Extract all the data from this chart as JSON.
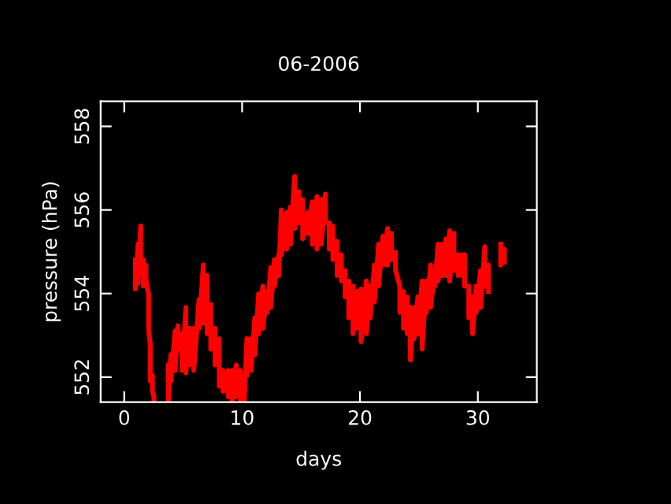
{
  "chart_data": {
    "type": "line",
    "title": "06-2006",
    "xlabel": "days",
    "ylabel": "pressure (hPa)",
    "xlim": [
      -2,
      35
    ],
    "xticks": [
      0,
      10,
      20,
      30
    ],
    "ylim": [
      551.4,
      558.6
    ],
    "yticks": [
      552,
      554,
      556,
      558
    ],
    "grid": false,
    "legend": false,
    "marker": "none",
    "line_style": "solid",
    "series": [
      {
        "color": "#ff0000",
        "x": [
          0.95,
          0.95,
          1.17,
          1.17,
          1.4,
          1.4,
          1.62,
          1.62,
          1.85,
          1.85,
          2.07,
          2.07,
          2.21,
          2.21,
          2.39,
          2.39,
          2.52,
          2.52,
          3.1,
          3.74,
          3.74,
          3.96,
          3.96,
          4.32,
          4.32,
          4.55,
          4.55,
          4.91,
          4.91,
          5.23,
          5.23,
          5.54,
          5.54,
          5.9,
          5.9,
          6.35,
          6.35,
          6.71,
          6.71,
          7.03,
          7.03,
          7.34,
          7.34,
          7.7,
          7.7,
          8.06,
          8.06,
          8.38,
          8.38,
          8.83,
          8.83,
          9.14,
          9.14,
          9.5,
          9.5,
          9.86,
          9.86,
          10.18,
          10.18,
          10.41,
          10.41,
          10.77,
          10.77,
          11.08,
          11.08,
          11.4,
          11.4,
          11.76,
          11.76,
          12.12,
          12.12,
          12.43,
          12.43,
          12.75,
          12.75,
          13.11,
          13.11,
          13.33,
          13.33,
          13.78,
          13.78,
          14.1,
          14.1,
          14.46,
          14.46,
          14.82,
          14.82,
          15.14,
          15.14,
          15.59,
          15.59,
          15.95,
          15.95,
          16.35,
          16.35,
          16.71,
          16.71,
          17.07,
          17.07,
          17.39,
          17.39,
          17.7,
          17.7,
          18.06,
          18.06,
          18.42,
          18.42,
          18.74,
          18.74,
          19.05,
          19.05,
          19.41,
          19.41,
          19.77,
          19.77,
          20.09,
          20.09,
          20.54,
          20.54,
          20.86,
          20.86,
          21.22,
          21.22,
          21.58,
          21.58,
          21.94,
          21.94,
          22.34,
          22.34,
          22.66,
          22.66,
          23.02,
          23.02,
          23.38,
          23.38,
          23.69,
          23.69,
          24.01,
          24.01,
          24.28,
          24.28,
          24.59,
          24.59,
          24.91,
          24.91,
          25.27,
          25.27,
          25.63,
          25.63,
          25.99,
          25.99,
          26.35,
          26.35,
          26.62,
          26.62,
          26.98,
          26.98,
          27.3,
          27.3,
          27.61,
          27.61,
          27.97,
          27.97,
          28.33,
          28.33,
          28.65,
          28.65,
          28.87,
          28.87,
          29.23,
          29.23,
          29.55,
          29.55,
          29.86,
          29.86,
          30.23,
          30.23,
          30.59,
          30.59,
          30.9,
          30.9,
          31.4,
          31.94,
          31.94,
          32.25,
          32.25
        ],
        "values": [
          554.81,
          554.11,
          555.18,
          554.24,
          555.62,
          554.55,
          554.81,
          554.18,
          554.68,
          554.3,
          553.99,
          553.11,
          552.79,
          551.91,
          552.04,
          551.66,
          551.53,
          551.41,
          null,
          552.29,
          551.41,
          552.54,
          551.91,
          553.11,
          552.16,
          553.23,
          552.67,
          553.04,
          552.16,
          553.67,
          552.1,
          553.17,
          552.29,
          553.17,
          552.16,
          553.86,
          553.17,
          554.68,
          553.29,
          554.43,
          553.04,
          553.74,
          552.67,
          553.17,
          552.29,
          552.92,
          551.78,
          552.16,
          551.66,
          552.16,
          551.53,
          552.16,
          551.41,
          552.29,
          551.53,
          552.16,
          551.41,
          552.04,
          551.41,
          552.92,
          552.04,
          552.92,
          552.16,
          553.42,
          552.54,
          553.99,
          553.04,
          554.18,
          553.17,
          554.05,
          553.55,
          554.62,
          553.67,
          554.81,
          554.18,
          554.93,
          554.43,
          556.0,
          554.93,
          555.94,
          555.06,
          556.07,
          555.18,
          556.8,
          555.56,
          556.44,
          555.69,
          556.25,
          555.31,
          555.94,
          555.44,
          556.19,
          555.18,
          556.32,
          555.06,
          556.25,
          555.18,
          556.38,
          555.69,
          555.69,
          555.06,
          555.62,
          554.81,
          555.25,
          554.43,
          554.93,
          554.3,
          554.55,
          553.92,
          554.3,
          553.42,
          554.18,
          553.04,
          554.05,
          553.17,
          554.11,
          552.85,
          554.3,
          553.04,
          554.18,
          553.42,
          554.68,
          553.8,
          555.18,
          554.18,
          555.37,
          554.68,
          555.56,
          554.68,
          555.44,
          554.81,
          554.99,
          554.55,
          554.18,
          553.55,
          554.05,
          553.17,
          553.92,
          553.04,
          553.67,
          552.41,
          553.67,
          552.92,
          553.92,
          553.04,
          554.3,
          552.67,
          554.3,
          553.55,
          554.68,
          553.67,
          554.55,
          554.18,
          555.18,
          554.3,
          555.18,
          554.43,
          555.31,
          554.43,
          555.5,
          554.3,
          555.44,
          554.55,
          554.93,
          554.43,
          554.93,
          554.43,
          554.93,
          554.18,
          554.18,
          553.42,
          553.92,
          553.04,
          554.18,
          553.55,
          554.55,
          553.67,
          555.12,
          554.18,
          554.68,
          554.05,
          null,
          555.18,
          554.68,
          555.06,
          554.75
        ]
      }
    ]
  }
}
